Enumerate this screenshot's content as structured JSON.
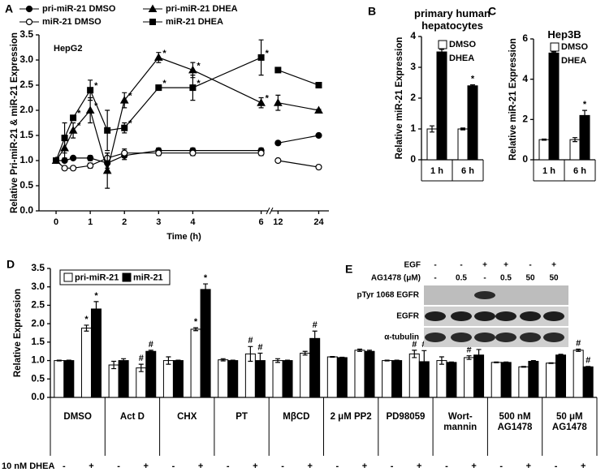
{
  "chart_data": [
    {
      "panel": "A",
      "type": "line",
      "subtitle": "HepG2",
      "x_label": "Time  (h)",
      "y_label": "Relative Pri-miR-21 & miR-21 Expression",
      "x": [
        0,
        0.25,
        0.5,
        1,
        1.5,
        2,
        3,
        4,
        6,
        12,
        24
      ],
      "xlim": [
        [
          -0.5,
          6.2
        ],
        [
          10,
          27
        ]
      ],
      "xticks": [
        0,
        1,
        2,
        3,
        4,
        6,
        12,
        24
      ],
      "ylim": [
        0,
        3.5
      ],
      "yticks": [
        {
          "value": 0,
          "label": "0.0"
        },
        0.5,
        {
          "value": 1,
          "label": "1.0"
        },
        1.5,
        {
          "value": 2,
          "label": "2.0"
        },
        2.5,
        {
          "value": 3,
          "label": "3.0"
        },
        3.5
      ],
      "series": [
        {
          "name": "pri-miR-21 DMSO",
          "color": "#000000",
          "marker": "circle",
          "marker_fill": "#000000",
          "values": [
            1.0,
            1.0,
            1.05,
            1.05,
            0.95,
            1.1,
            1.2,
            1.2,
            1.2,
            1.35,
            1.5
          ],
          "errors": [
            0.02,
            0.03,
            0.03,
            0.05,
            0.1,
            0.08,
            0.05,
            0.05,
            0.05,
            0.02,
            0.02
          ],
          "sig": [
            null,
            null,
            null,
            null,
            null,
            null,
            null,
            null,
            null,
            null,
            null
          ]
        },
        {
          "name": "miR-21 DMSO",
          "color": "#000000",
          "marker": "circle",
          "marker_fill": "#ffffff",
          "values": [
            1.0,
            0.85,
            0.85,
            0.9,
            1.05,
            1.15,
            1.15,
            1.15,
            1.15,
            1.0,
            0.87
          ],
          "errors": [
            0.02,
            0.03,
            0.03,
            0.05,
            0.1,
            0.08,
            0.05,
            0.05,
            0.05,
            0.02,
            0.02
          ],
          "sig": [
            null,
            null,
            null,
            null,
            null,
            null,
            null,
            null,
            null,
            null,
            null
          ]
        },
        {
          "name": "pri-miR-21 DHEA",
          "color": "#000000",
          "marker": "triangle",
          "marker_fill": "#000000",
          "values": [
            1.0,
            1.25,
            1.6,
            2.0,
            0.8,
            2.2,
            3.05,
            2.8,
            2.15,
            2.15,
            2.0
          ],
          "errors": [
            0.02,
            0.2,
            0.15,
            0.25,
            0.35,
            0.15,
            0.1,
            0.15,
            0.1,
            0.15,
            0.02
          ],
          "sig": [
            null,
            null,
            "*",
            "*",
            null,
            "*",
            "*",
            "*",
            "*",
            null,
            null
          ]
        },
        {
          "name": "miR-21 DHEA",
          "color": "#000000",
          "marker": "square",
          "marker_fill": "#000000",
          "values": [
            1.0,
            1.45,
            1.85,
            2.4,
            1.6,
            1.65,
            2.45,
            2.45,
            3.05,
            2.8,
            2.5
          ],
          "errors": [
            0.02,
            0.3,
            0.05,
            0.2,
            0.4,
            0.1,
            0.05,
            0.25,
            0.35,
            0.02,
            0.02
          ],
          "sig": [
            null,
            null,
            "*",
            "*",
            null,
            "*",
            "*",
            "*",
            "*",
            null,
            null
          ]
        }
      ]
    },
    {
      "panel": "B",
      "type": "bar",
      "title": "primary human hepatocytes",
      "y_label": "Relative miR-21 Expression",
      "categories": [
        "1 h",
        "6 h"
      ],
      "ylim": [
        0,
        4
      ],
      "yticks": [
        0,
        1,
        2,
        3,
        4
      ],
      "legend": "upper right",
      "series": [
        {
          "name": "DMSO",
          "color": "#ffffff",
          "values": [
            1.0,
            1.0
          ],
          "errors": [
            0.1,
            0.03
          ],
          "sig": [
            null,
            null
          ]
        },
        {
          "name": "DHEA",
          "color": "#000000",
          "values": [
            3.5,
            2.4
          ],
          "errors": [
            0.08,
            0.03
          ],
          "sig": [
            "*",
            "*"
          ]
        }
      ]
    },
    {
      "panel": "C",
      "type": "bar",
      "title": "Hep3B",
      "y_label": "Relative miR-21 Expression",
      "categories": [
        "1 h",
        "6 h"
      ],
      "ylim": [
        0,
        6
      ],
      "yticks": [
        0,
        2,
        4,
        6
      ],
      "legend": "upper right",
      "series": [
        {
          "name": "DMSO",
          "color": "#ffffff",
          "values": [
            1.0,
            1.0
          ],
          "errors": [
            0.03,
            0.1
          ],
          "sig": [
            null,
            null
          ]
        },
        {
          "name": "DHEA",
          "color": "#000000",
          "values": [
            5.3,
            2.2
          ],
          "errors": [
            0.05,
            0.25
          ],
          "sig": [
            "*",
            "*"
          ]
        }
      ]
    },
    {
      "panel": "D",
      "type": "bar",
      "y_label": "Relative Expression",
      "x_label": "10 nM DHEA",
      "groups": [
        "DMSO",
        "Act D",
        "CHX",
        "PT",
        "MβCD",
        "2 μM PP2",
        "PD98059",
        "Wort-mannin",
        "500 nM AG1478",
        "50 μM AG1478"
      ],
      "categories": [
        "-",
        "+",
        "-",
        "+",
        "-",
        "+",
        "-",
        "+",
        "-",
        "+",
        "-",
        "+",
        "-",
        "+",
        "-",
        "+",
        "-",
        "+",
        "-",
        "+"
      ],
      "ylim": [
        0,
        3.5
      ],
      "yticks": [
        {
          "value": 0,
          "label": "0.0"
        },
        0.5,
        {
          "value": 1,
          "label": "1.0"
        },
        1.5,
        {
          "value": 2,
          "label": "2.0"
        },
        2.5,
        {
          "value": 3,
          "label": "3.0"
        },
        3.5
      ],
      "legend": "upper left",
      "series": [
        {
          "name": "pri-miR-21",
          "color": "#ffffff",
          "values": [
            1.0,
            1.88,
            0.88,
            0.8,
            1.0,
            1.85,
            1.02,
            1.18,
            1.0,
            1.2,
            1.1,
            1.28,
            1.0,
            1.18,
            1.0,
            1.08,
            0.95,
            0.83,
            0.93,
            1.28
          ],
          "errors": [
            0.01,
            0.08,
            0.1,
            0.1,
            0.1,
            0.04,
            0.03,
            0.2,
            0.05,
            0.05,
            0.01,
            0.03,
            0.01,
            0.1,
            0.1,
            0.05,
            0.01,
            0.01,
            0.01,
            0.03
          ],
          "sig": [
            null,
            "*",
            null,
            "#",
            null,
            "*",
            null,
            "#",
            null,
            null,
            null,
            null,
            null,
            "#",
            null,
            "#",
            null,
            null,
            null,
            "#"
          ]
        },
        {
          "name": "miR-21",
          "color": "#000000",
          "values": [
            1.0,
            2.4,
            1.0,
            1.25,
            1.0,
            2.93,
            1.0,
            1.0,
            1.0,
            1.6,
            1.08,
            1.25,
            1.0,
            0.97,
            0.95,
            1.15,
            0.95,
            0.98,
            1.15,
            0.83
          ],
          "errors": [
            0.01,
            0.2,
            0.05,
            0.03,
            0.01,
            0.15,
            0.01,
            0.2,
            0.01,
            0.2,
            0.01,
            0.03,
            0.01,
            0.3,
            0.01,
            0.15,
            0.01,
            0.02,
            0.02,
            0.01
          ],
          "sig": [
            null,
            "*",
            null,
            "#",
            null,
            "*",
            null,
            "#",
            null,
            "#",
            null,
            null,
            null,
            "#",
            null,
            "#",
            null,
            null,
            null,
            "#"
          ]
        }
      ]
    }
  ],
  "blot": {
    "panel": "E",
    "rows": [
      {
        "label": "EGF",
        "lanes": [
          "-",
          "-",
          "+",
          "+",
          "-",
          "+"
        ]
      },
      {
        "label": "AG1478 (μM)",
        "lanes": [
          "-",
          "0.5",
          "-",
          "0.5",
          "50",
          "50"
        ]
      }
    ],
    "bands": [
      "pTyr 1068 EGFR",
      "EGFR",
      "α-tubulin"
    ]
  }
}
